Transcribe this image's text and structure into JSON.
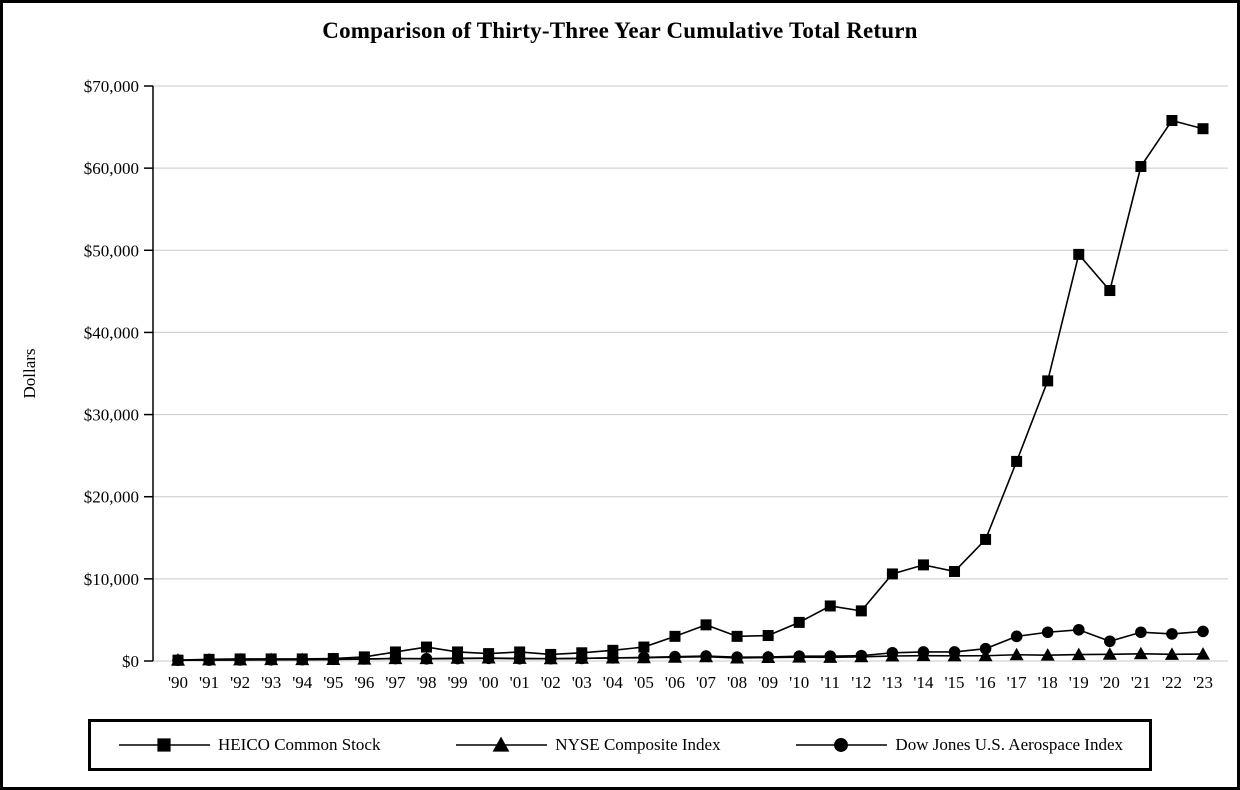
{
  "chart_data": {
    "type": "line",
    "title": "Comparison of Thirty-Three Year Cumulative Total Return",
    "xlabel": "",
    "ylabel": "Dollars",
    "ylim": [
      0,
      70000
    ],
    "ytick_step": 10000,
    "ytick_labels": [
      "$0",
      "$10,000",
      "$20,000",
      "$30,000",
      "$40,000",
      "$50,000",
      "$60,000",
      "$70,000"
    ],
    "grid": true,
    "legend_position": "bottom",
    "line_color": "#000000",
    "grid_color": "#c9c9c9",
    "categories": [
      "'90",
      "'91",
      "'92",
      "'93",
      "'94",
      "'95",
      "'96",
      "'97",
      "'98",
      "'99",
      "'00",
      "'01",
      "'02",
      "'03",
      "'04",
      "'05",
      "'06",
      "'07",
      "'08",
      "'09",
      "'10",
      "'11",
      "'12",
      "'13",
      "'14",
      "'15",
      "'16",
      "'17",
      "'18",
      "'19",
      "'20",
      "'21",
      "'22",
      "'23"
    ],
    "series": [
      {
        "name": "HEICO Common Stock",
        "marker": "square",
        "values": [
          100,
          200,
          250,
          250,
          250,
          300,
          500,
          1100,
          1700,
          1100,
          900,
          1100,
          800,
          1000,
          1300,
          1700,
          3000,
          4400,
          3000,
          3100,
          4700,
          6700,
          6100,
          10600,
          11700,
          10900,
          14800,
          24300,
          34100,
          49500,
          45100,
          60200,
          65800,
          64800
        ]
      },
      {
        "name": "NYSE Composite Index",
        "marker": "triangle",
        "values": [
          100,
          130,
          140,
          160,
          160,
          190,
          230,
          290,
          290,
          330,
          360,
          320,
          270,
          330,
          370,
          400,
          460,
          520,
          370,
          420,
          470,
          440,
          510,
          610,
          650,
          630,
          640,
          760,
          710,
          780,
          820,
          880,
          810,
          840
        ]
      },
      {
        "name": "Dow Jones U.S. Aerospace Index",
        "marker": "circle",
        "values": [
          100,
          110,
          130,
          150,
          160,
          210,
          260,
          300,
          270,
          300,
          330,
          280,
          280,
          310,
          380,
          440,
          520,
          600,
          460,
          480,
          580,
          590,
          650,
          1000,
          1100,
          1100,
          1500,
          3000,
          3500,
          3800,
          2400,
          3500,
          3300,
          3600
        ]
      }
    ]
  }
}
